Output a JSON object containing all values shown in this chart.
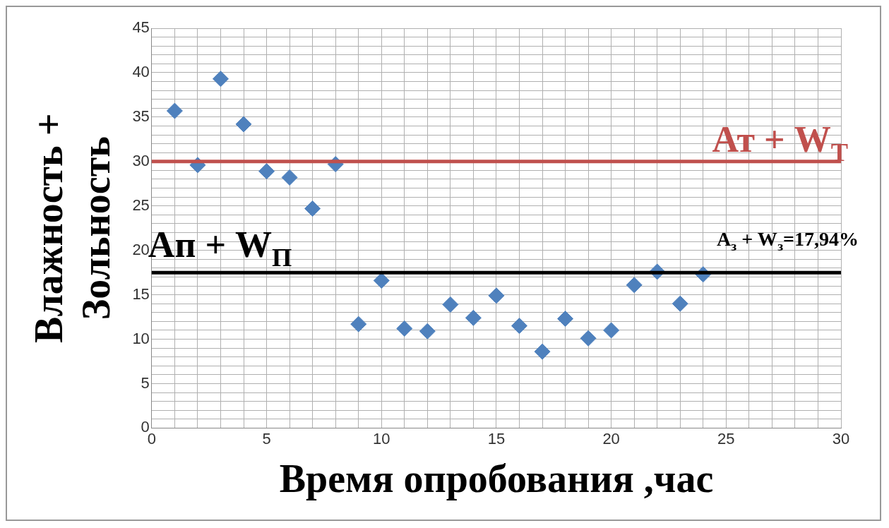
{
  "chart_data": {
    "type": "scatter",
    "xlabel": "Время опробования ,час",
    "ylabel": "Влажность + Зольность",
    "x": [
      1,
      2,
      3,
      4,
      5,
      6,
      7,
      8,
      9,
      10,
      11,
      12,
      13,
      14,
      15,
      16,
      17,
      18,
      19,
      20,
      21,
      22,
      23,
      24
    ],
    "series": [
      {
        "color": "#4f81bd",
        "values": [
          35.7,
          29.6,
          39.3,
          34.2,
          28.9,
          28.2,
          24.7,
          29.7,
          11.7,
          16.6,
          11.2,
          10.9,
          13.9,
          12.4,
          14.9,
          11.5,
          8.6,
          12.3,
          10.1,
          11.0,
          16.1,
          17.6,
          14.0,
          17.3
        ]
      }
    ],
    "marker": "diamond",
    "grid": true,
    "legend": false,
    "xlim": [
      0,
      30
    ],
    "xticks": [
      0,
      {
        "value": 1,
        "label": null
      },
      {
        "value": 2,
        "label": null
      },
      {
        "value": 3,
        "label": null
      },
      {
        "value": 4,
        "label": null
      },
      5,
      {
        "value": 6,
        "label": null
      },
      {
        "value": 7,
        "label": null
      },
      {
        "value": 8,
        "label": null
      },
      {
        "value": 9,
        "label": null
      },
      10,
      {
        "value": 11,
        "label": null
      },
      {
        "value": 12,
        "label": null
      },
      {
        "value": 13,
        "label": null
      },
      {
        "value": 14,
        "label": null
      },
      15,
      {
        "value": 16,
        "label": null
      },
      {
        "value": 17,
        "label": null
      },
      {
        "value": 18,
        "label": null
      },
      {
        "value": 19,
        "label": null
      },
      20,
      {
        "value": 21,
        "label": null
      },
      {
        "value": 22,
        "label": null
      },
      {
        "value": 23,
        "label": null
      },
      {
        "value": 24,
        "label": null
      },
      25,
      {
        "value": 26,
        "label": null
      },
      {
        "value": 27,
        "label": null
      },
      {
        "value": 28,
        "label": null
      },
      {
        "value": 29,
        "label": null
      },
      30
    ],
    "ylim": [
      0,
      45
    ],
    "yticks": [
      0,
      {
        "value": 1,
        "label": null
      },
      {
        "value": 2,
        "label": null
      },
      {
        "value": 3,
        "label": null
      },
      {
        "value": 4,
        "label": null
      },
      5,
      {
        "value": 6,
        "label": null
      },
      {
        "value": 7,
        "label": null
      },
      {
        "value": 8,
        "label": null
      },
      {
        "value": 9,
        "label": null
      },
      10,
      {
        "value": 11,
        "label": null
      },
      {
        "value": 12,
        "label": null
      },
      {
        "value": 13,
        "label": null
      },
      {
        "value": 14,
        "label": null
      },
      15,
      {
        "value": 16,
        "label": null
      },
      {
        "value": 17,
        "label": null
      },
      {
        "value": 18,
        "label": null
      },
      {
        "value": 19,
        "label": null
      },
      20,
      {
        "value": 21,
        "label": null
      },
      {
        "value": 22,
        "label": null
      },
      {
        "value": 23,
        "label": null
      },
      {
        "value": 24,
        "label": null
      },
      25,
      {
        "value": 26,
        "label": null
      },
      {
        "value": 27,
        "label": null
      },
      {
        "value": 28,
        "label": null
      },
      {
        "value": 29,
        "label": null
      },
      30,
      {
        "value": 31,
        "label": null
      },
      {
        "value": 32,
        "label": null
      },
      {
        "value": 33,
        "label": null
      },
      {
        "value": 34,
        "label": null
      },
      35,
      {
        "value": 36,
        "label": null
      },
      {
        "value": 37,
        "label": null
      },
      {
        "value": 38,
        "label": null
      },
      {
        "value": 39,
        "label": null
      },
      40,
      {
        "value": 41,
        "label": null
      },
      {
        "value": 42,
        "label": null
      },
      {
        "value": 43,
        "label": null
      },
      {
        "value": 44,
        "label": null
      },
      45
    ],
    "ref_lines": [
      {
        "axis": "y",
        "value": 30,
        "label": "Ат + W$_{Т}$",
        "color": "#c0504d"
      },
      {
        "axis": "y",
        "value": 17.5,
        "label": "Ап + W$_{П}$",
        "color": "#000000"
      }
    ],
    "annotations": [
      "A$_{з}$ + W$_{з}$=17,94%"
    ]
  }
}
